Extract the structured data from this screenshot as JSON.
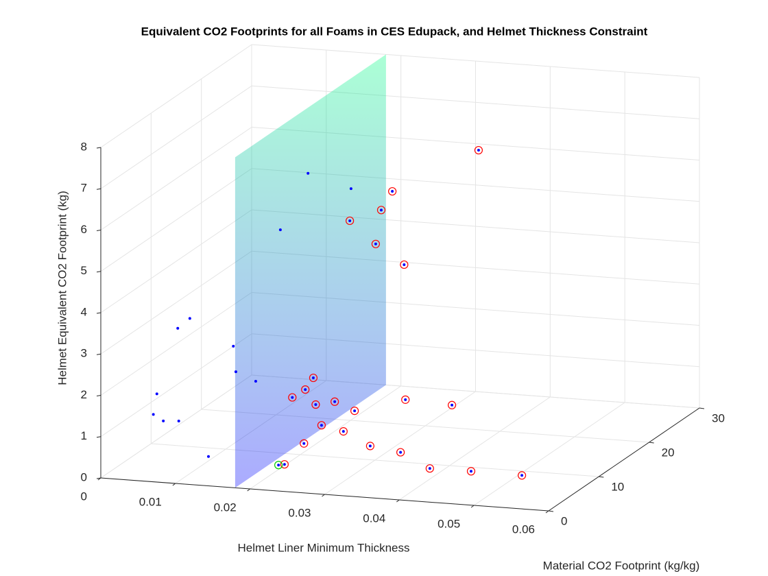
{
  "chart_data": {
    "type": "scatter3d",
    "title": "Equivalent CO2 Footprints for all Foams in CES Edupack, and Helmet Thickness Constraint",
    "xlabel": "Helmet Liner Minimum Thickness",
    "ylabel": "Material CO2 Footprint (kg/kg)",
    "zlabel": "Helmet Equivalent CO2 Footprint (kg)",
    "xlim": [
      0,
      0.06
    ],
    "xticks": [
      0,
      0.01,
      0.02,
      0.03,
      0.04,
      0.05,
      0.06
    ],
    "ylim": [
      0,
      30
    ],
    "yticks": [
      0,
      10,
      20,
      30
    ],
    "zlim": [
      0,
      8
    ],
    "zticks": [
      0,
      1,
      2,
      3,
      4,
      5,
      6,
      7,
      8
    ],
    "grid": true,
    "plane": {
      "x": 0.018,
      "colors": [
        "#0000ff",
        "#00ff80"
      ],
      "alpha": 0.33
    },
    "series": [
      {
        "marker": "dot",
        "color": "#0000ff",
        "x": [
          0.012,
          0.015,
          0.012,
          0.006,
          0.006,
          0.009,
          0.009,
          0.012,
          0.003,
          0.003,
          0.0042,
          0.006,
          0.012,
          0.0228,
          0.036,
          0.027,
          0.027,
          0.024,
          0.027,
          0.03,
          0.021,
          0.021,
          0.0198,
          0.0228,
          0.024,
          0.033,
          0.036,
          0.027,
          0.0252,
          0.0282,
          0.0252,
          0.033,
          0.0372,
          0.042,
          0.048,
          0.054,
          0.0234
        ],
        "y": [
          23.4,
          27.5,
          17.9,
          8.8,
          6.4,
          13.0,
          13.5,
          13.0,
          6.7,
          6.0,
          6.2,
          6.6,
          3.6,
          1.5,
          21.7,
          17.9,
          15.7,
          13.9,
          14.6,
          15.8,
          11.1,
          9.5,
          8.7,
          8.9,
          10.9,
          11.6,
          16.4,
          10.4,
          6.5,
          6.4,
          3.0,
          4.6,
          4.4,
          3.1,
          2.4,
          3.6,
          1.8
        ],
        "z": [
          5.59,
          4.92,
          4.68,
          3.21,
          3.17,
          2.23,
          1.57,
          1.42,
          1.52,
          1.08,
          0.92,
          0.91,
          0.38,
          0.49,
          6.61,
          5.81,
          5.54,
          5.39,
          4.81,
          4.25,
          1.78,
          1.63,
          1.49,
          1.34,
          1.26,
          1.37,
          0.88,
          1.12,
          1.07,
          0.97,
          0.92,
          0.83,
          0.75,
          0.53,
          0.6,
          0.48,
          0.49
        ]
      },
      {
        "marker": "circle",
        "color": "#ff0000",
        "x": [
          0.036,
          0.027,
          0.027,
          0.024,
          0.027,
          0.03,
          0.021,
          0.021,
          0.0198,
          0.0228,
          0.024,
          0.033,
          0.036,
          0.027,
          0.0252,
          0.0282,
          0.0252,
          0.033,
          0.0372,
          0.042,
          0.048,
          0.054,
          0.0234
        ],
        "y": [
          21.7,
          17.9,
          15.7,
          13.9,
          14.6,
          15.8,
          11.1,
          9.5,
          8.7,
          8.9,
          10.9,
          11.6,
          16.4,
          10.4,
          6.5,
          6.4,
          3.0,
          4.6,
          4.4,
          3.1,
          2.4,
          3.6,
          1.8
        ],
        "z": [
          6.61,
          5.81,
          5.54,
          5.39,
          4.81,
          4.25,
          1.78,
          1.63,
          1.49,
          1.34,
          1.26,
          1.37,
          0.88,
          1.12,
          1.07,
          0.97,
          0.92,
          0.83,
          0.75,
          0.53,
          0.6,
          0.48,
          0.49
        ]
      },
      {
        "marker": "circle",
        "color": "#00cc00",
        "x": [
          0.0228
        ],
        "y": [
          1.5
        ],
        "z": [
          0.49
        ]
      }
    ]
  }
}
